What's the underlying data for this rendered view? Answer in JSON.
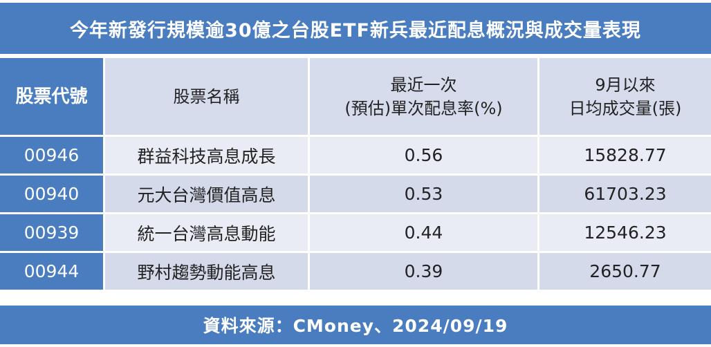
{
  "title": "今年新發行規模逾30億之台股ETF新兵最近配息概況與成交量表現",
  "headers": {
    "code": "股票代號",
    "name": "股票名稱",
    "yield_line1": "最近一次",
    "yield_line2": "(預估)單次配息率(%)",
    "volume_line1": "9月以來",
    "volume_line2": "日均成交量(張)"
  },
  "rows": [
    {
      "code": "00946",
      "name": "群益科技高息成長",
      "yield": "0.56",
      "volume": "15828.77"
    },
    {
      "code": "00940",
      "name": "元大台灣價值高息",
      "yield": "0.53",
      "volume": "61703.23"
    },
    {
      "code": "00939",
      "name": "統一台灣高息動能",
      "yield": "0.44",
      "volume": "12546.23"
    },
    {
      "code": "00944",
      "name": "野村趨勢動能高息",
      "yield": "0.39",
      "volume": "2650.77"
    }
  ],
  "footer": "資料來源：CMoney、2024/09/19",
  "colors": {
    "accent_blue": "#4a7dbf",
    "header_cell": "#d6dcec",
    "row_light": "#e9ecf5",
    "row_dark": "#d4daea"
  }
}
